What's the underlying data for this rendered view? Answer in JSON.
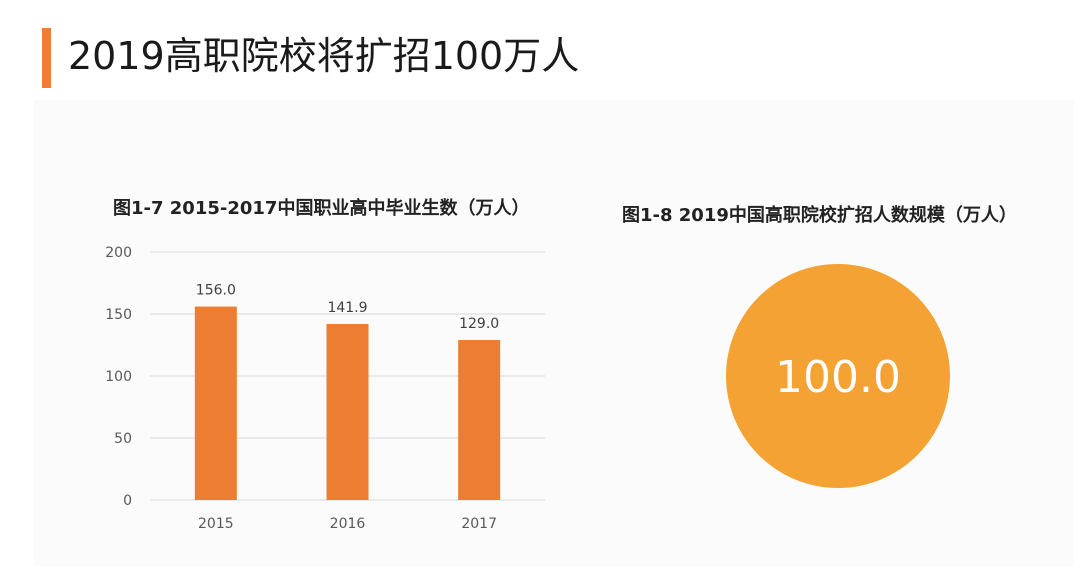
{
  "header": {
    "title": "2019高职院校将扩招100万人"
  },
  "colors": {
    "accent": "#ee7d3b",
    "bar": "#ed7d31",
    "bubble": "#f5a235",
    "grid": "#d9d9d9",
    "tick_text": "#595959"
  },
  "chart_data": [
    {
      "type": "bar",
      "title": "图1-7 2015-2017中国职业高中毕业生数（万人）",
      "categories": [
        "2015",
        "2016",
        "2017"
      ],
      "values": [
        156.0,
        141.9,
        129.0
      ],
      "data_labels": [
        "156.0",
        "141.9",
        "129.0"
      ],
      "yticks": [
        "0",
        "50",
        "100",
        "150",
        "200"
      ],
      "ylim": [
        0,
        200
      ],
      "grid": true,
      "xlabel": "",
      "ylabel": ""
    },
    {
      "type": "bubble",
      "title": "图1-8 2019中国高职院校扩招人数规模（万人）",
      "value": 100.0,
      "value_label": "100.0"
    }
  ]
}
